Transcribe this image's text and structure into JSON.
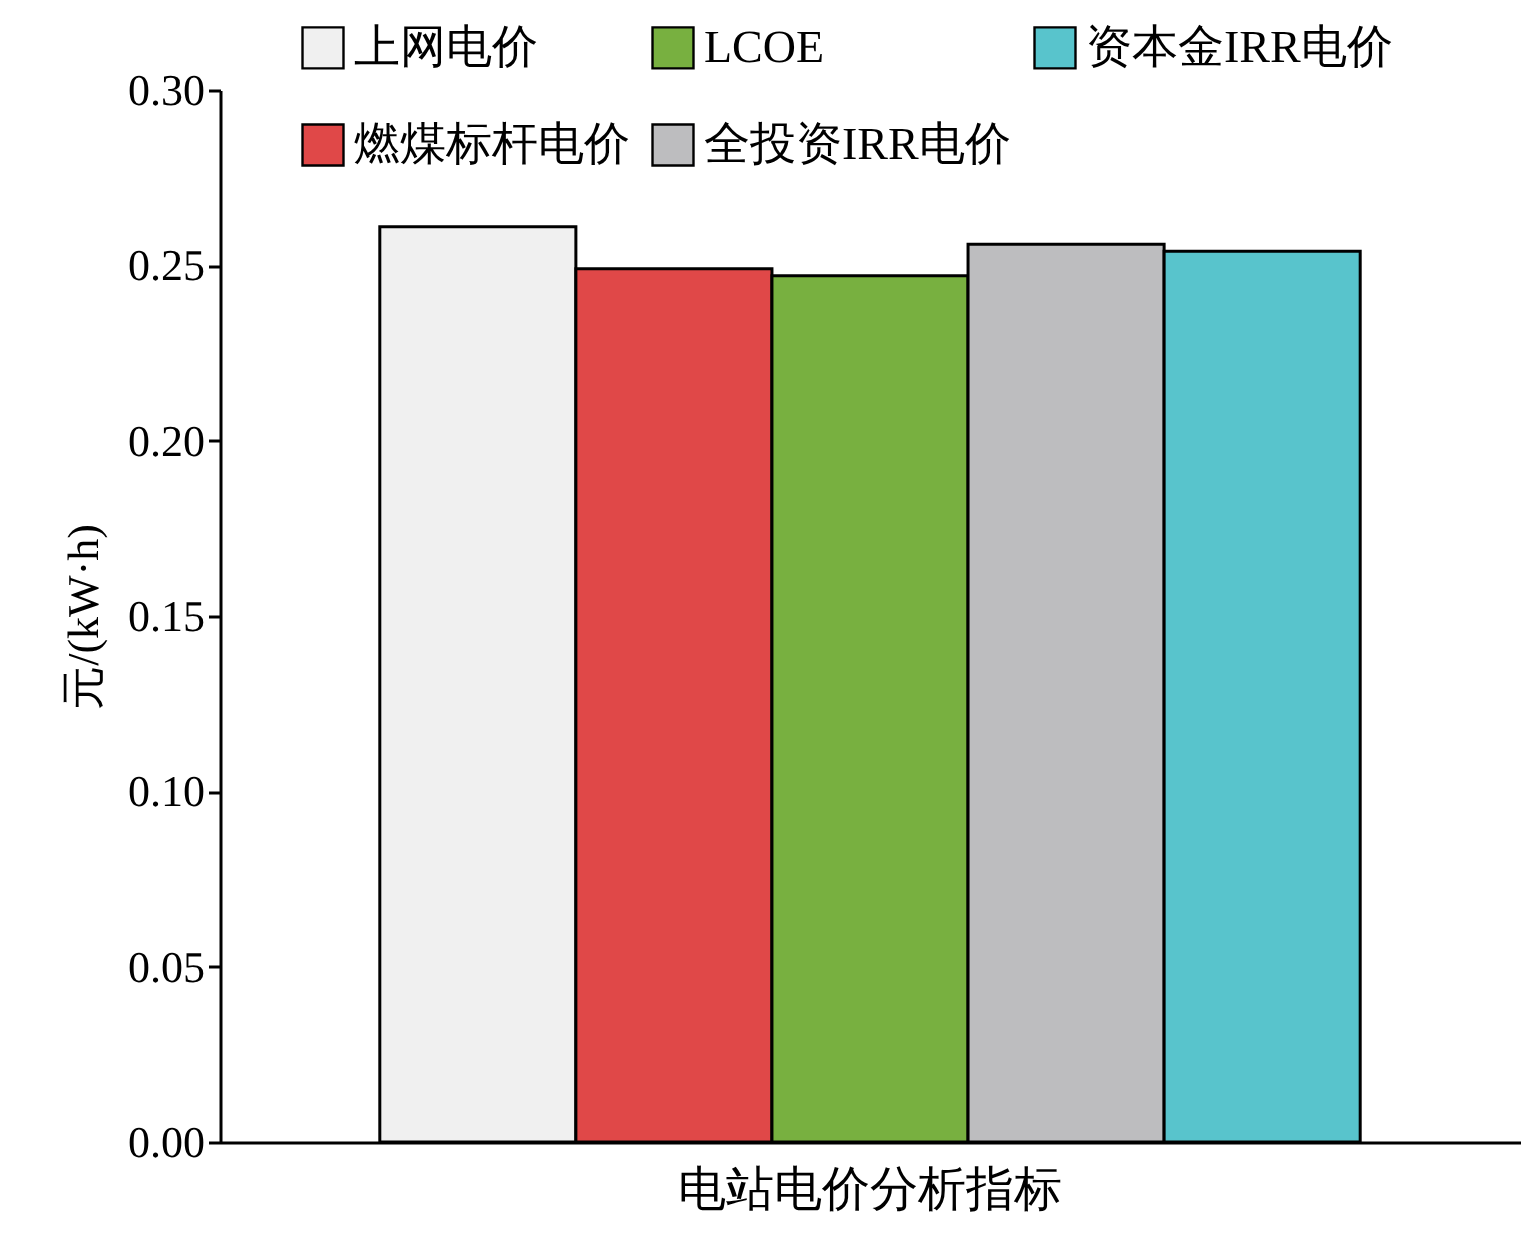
{
  "chart_data": {
    "type": "bar",
    "ylabel": "元/(kW·h)",
    "categories": [
      "电站电价分析指标"
    ],
    "series": [
      {
        "name": "上网电价",
        "color": "#f0f0f0",
        "values": [
          0.261
        ]
      },
      {
        "name": "燃煤标杆电价",
        "color": "#e04848",
        "values": [
          0.249
        ]
      },
      {
        "name": "LCOE",
        "color": "#78b040",
        "values": [
          0.247
        ]
      },
      {
        "name": "全投资IRR电价",
        "color": "#bdbdbf",
        "values": [
          0.256
        ]
      },
      {
        "name": "资本金IRR电价",
        "color": "#58c4cc",
        "values": [
          0.254
        ]
      }
    ],
    "ylim": [
      0,
      0.3
    ],
    "yticks": [
      {
        "value": 0,
        "label": "0.00"
      },
      {
        "value": 0.05,
        "label": "0.05"
      },
      {
        "value": 0.1,
        "label": "0.10"
      },
      {
        "value": 0.15,
        "label": "0.15"
      },
      {
        "value": 0.2,
        "label": "0.20"
      },
      {
        "value": 0.25,
        "label": "0.25"
      },
      {
        "value": 0.3,
        "label": "0.30"
      }
    ],
    "grid": false,
    "legend": "top right"
  }
}
